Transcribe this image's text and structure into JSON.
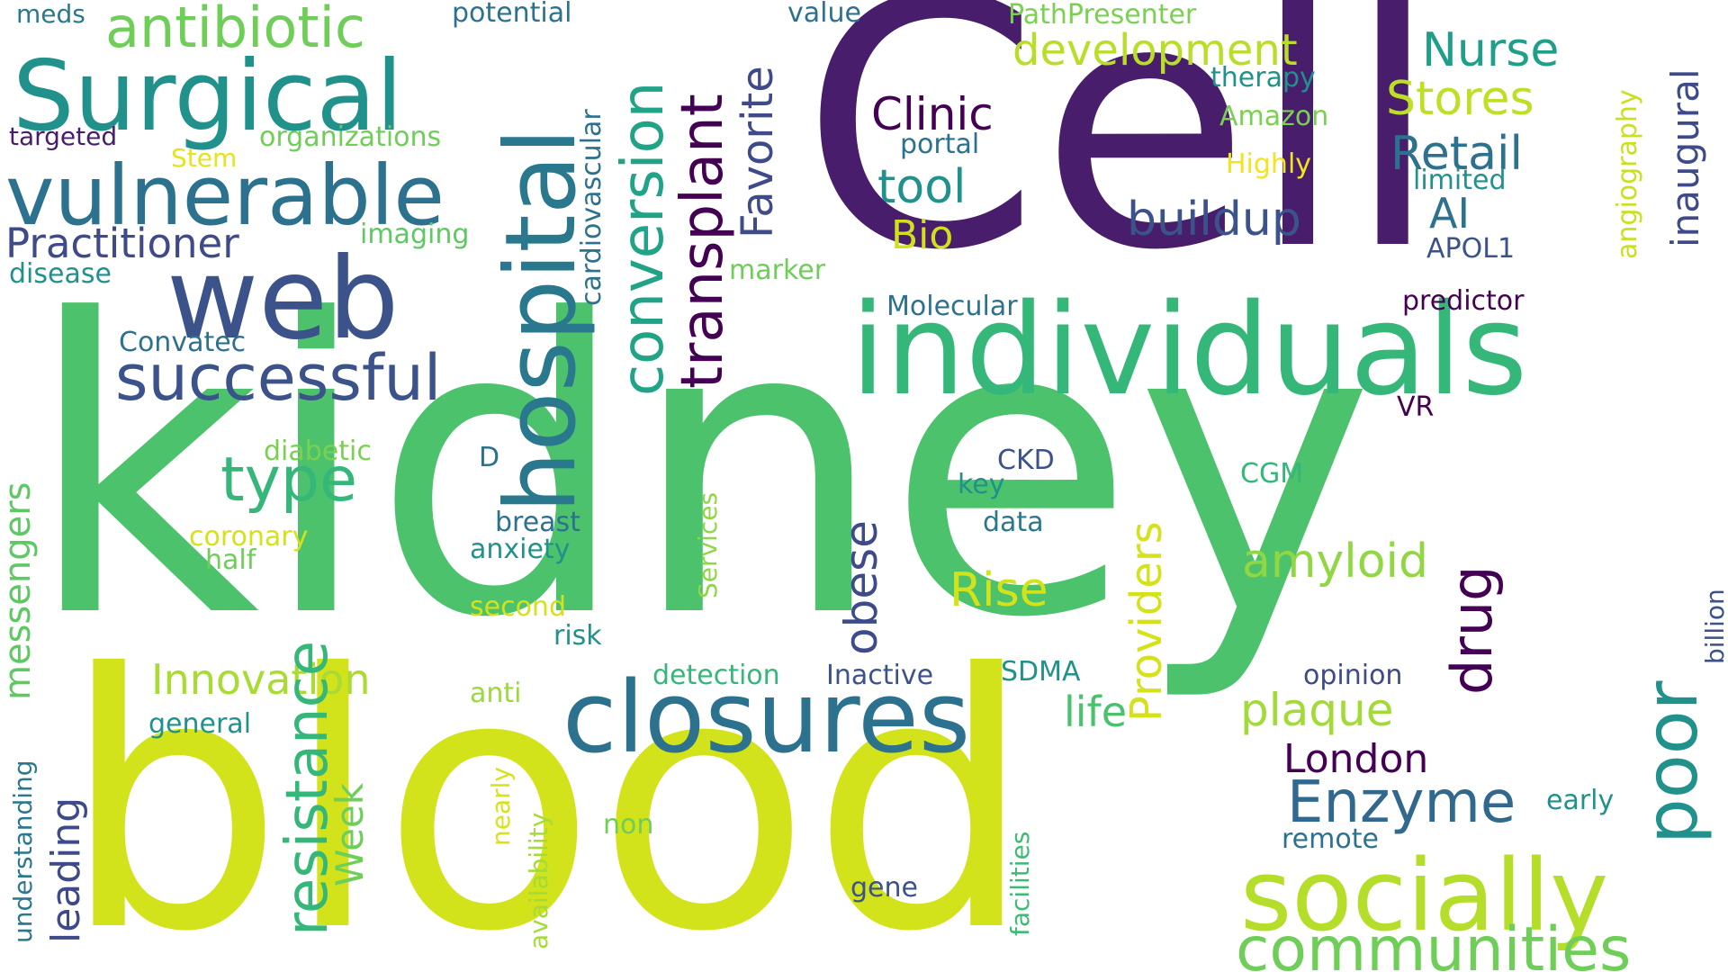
{
  "words": [
    {
      "text": "kidney",
      "color": "#4cc26c"
    },
    {
      "text": "blood",
      "color": "#d2e21b"
    },
    {
      "text": "Cell",
      "color": "#471d6c"
    },
    {
      "text": "individuals",
      "color": "#35b779"
    },
    {
      "text": "web",
      "color": "#3b528b"
    },
    {
      "text": "Surgical",
      "color": "#21918c"
    },
    {
      "text": "vulnerable",
      "color": "#2c728e"
    },
    {
      "text": "hospital",
      "color": "#2a788e"
    },
    {
      "text": "closures",
      "color": "#2c728e"
    },
    {
      "text": "socially",
      "color": "#b5de2b"
    },
    {
      "text": "communities",
      "color": "#6ece58"
    },
    {
      "text": "conversion",
      "color": "#20a386"
    },
    {
      "text": "transplant",
      "color": "#440154"
    },
    {
      "text": "Favorite",
      "color": "#3e4a89"
    },
    {
      "text": "antibiotic",
      "color": "#6ece58"
    },
    {
      "text": "successful",
      "color": "#3b528b"
    },
    {
      "text": "resistance",
      "color": "#35b779"
    },
    {
      "text": "type",
      "color": "#35b779"
    },
    {
      "text": "Practitioner",
      "color": "#3e4a89"
    },
    {
      "text": "development",
      "color": "#b8de29"
    },
    {
      "text": "Nurse",
      "color": "#1f9e89"
    },
    {
      "text": "Stores",
      "color": "#bddf26"
    },
    {
      "text": "Retail",
      "color": "#2c728e"
    },
    {
      "text": "Clinic",
      "color": "#440154"
    },
    {
      "text": "tool",
      "color": "#21918c"
    },
    {
      "text": "buildup",
      "color": "#3b528b"
    },
    {
      "text": "Bio",
      "color": "#d0e11c"
    },
    {
      "text": "AI",
      "color": "#2c728e"
    },
    {
      "text": "amyloid",
      "color": "#90d743"
    },
    {
      "text": "drug",
      "color": "#440154"
    },
    {
      "text": "poor",
      "color": "#21918c"
    },
    {
      "text": "Enzyme",
      "color": "#31688e"
    },
    {
      "text": "London",
      "color": "#440154"
    },
    {
      "text": "plaque",
      "color": "#a2da37"
    },
    {
      "text": "Rise",
      "color": "#d2e21b"
    },
    {
      "text": "Providers",
      "color": "#d5e21a"
    },
    {
      "text": "obese",
      "color": "#3e4a89"
    },
    {
      "text": "messengers",
      "color": "#5ec962"
    },
    {
      "text": "Innovation",
      "color": "#3e4a89"
    },
    {
      "text": "leading",
      "color": "#6ece58"
    },
    {
      "text": "Week",
      "color": "#a8db34"
    },
    {
      "text": "life",
      "color": "#4ac16d"
    },
    {
      "text": "inaugural",
      "color": "#3e4a89"
    },
    {
      "text": "angiography",
      "color": "#c8e020"
    },
    {
      "text": "billion",
      "color": "#3b528b"
    },
    {
      "text": "cardiovascular",
      "color": "#2c728e"
    },
    {
      "text": "Services",
      "color": "#8fd744"
    },
    {
      "text": "availability",
      "color": "#a5db36"
    },
    {
      "text": "nearly",
      "color": "#d8e219"
    },
    {
      "text": "understanding",
      "color": "#2a788e"
    },
    {
      "text": "facilities",
      "color": "#3bbb75"
    },
    {
      "text": "meds",
      "color": "#2a788e"
    },
    {
      "text": "targeted",
      "color": "#471d6c"
    },
    {
      "text": "Stem",
      "color": "#e5e419"
    },
    {
      "text": "organizations",
      "color": "#6ece58"
    },
    {
      "text": "potential",
      "color": "#2c728e"
    },
    {
      "text": "value",
      "color": "#2c728e"
    },
    {
      "text": "PathPresenter",
      "color": "#7ad151"
    },
    {
      "text": "therapy",
      "color": "#21918c"
    },
    {
      "text": "Amazon",
      "color": "#7ad151"
    },
    {
      "text": "portal",
      "color": "#2c728e"
    },
    {
      "text": "Highly",
      "color": "#f1e51d"
    },
    {
      "text": "limited",
      "color": "#21918c"
    },
    {
      "text": "APOL1",
      "color": "#3b528b"
    },
    {
      "text": "predictor",
      "color": "#440154"
    },
    {
      "text": "Molecular",
      "color": "#2c728e"
    },
    {
      "text": "imaging",
      "color": "#5ec962"
    },
    {
      "text": "disease",
      "color": "#21918c"
    },
    {
      "text": "marker",
      "color": "#6ece58"
    },
    {
      "text": "Convatec",
      "color": "#2c728e"
    },
    {
      "text": "diabetic",
      "color": "#7ad151"
    },
    {
      "text": "D",
      "color": "#2c728e"
    },
    {
      "text": "CKD",
      "color": "#3b528b"
    },
    {
      "text": "key",
      "color": "#21918c"
    },
    {
      "text": "data",
      "color": "#2a788e"
    },
    {
      "text": "CGM",
      "color": "#35b779"
    },
    {
      "text": "VR",
      "color": "#440154"
    },
    {
      "text": "breast",
      "color": "#2c728e"
    },
    {
      "text": "coronary",
      "color": "#d5e21a"
    },
    {
      "text": "anxiety",
      "color": "#21918c"
    },
    {
      "text": "half",
      "color": "#6ece58"
    },
    {
      "text": "second",
      "color": "#d5e21a"
    },
    {
      "text": "risk",
      "color": "#21918c"
    },
    {
      "text": "detection",
      "color": "#35b779"
    },
    {
      "text": "Inactive",
      "color": "#3b528b"
    },
    {
      "text": "SDMA",
      "color": "#21918c"
    },
    {
      "text": "opinion",
      "color": "#3e4a89"
    },
    {
      "text": "anti",
      "color": "#9bd93c"
    },
    {
      "text": "general",
      "color": "#21918c"
    },
    {
      "text": "non",
      "color": "#6ece58"
    },
    {
      "text": "early",
      "color": "#21918c"
    },
    {
      "text": "remote",
      "color": "#2c728e"
    },
    {
      "text": "gene",
      "color": "#3b528b"
    }
  ]
}
